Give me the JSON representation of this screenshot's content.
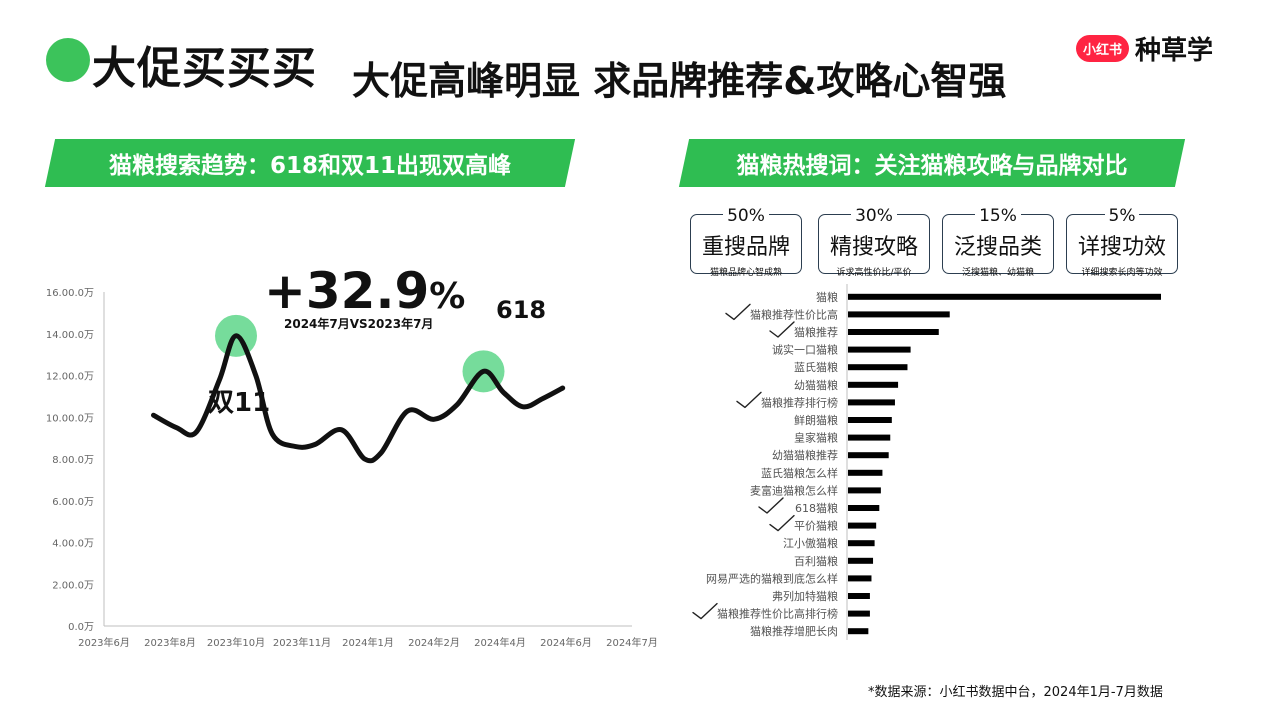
{
  "header": {
    "title_main": "大促买买买",
    "title_sub": "大促高峰明显 求品牌推荐&攻略心智强",
    "logo_badge": "小红书",
    "logo_text": "种草学"
  },
  "colors": {
    "accent": "#2fbd52",
    "dot": "#3cc35b",
    "highlight": "#5ed68a",
    "logo_red": "#ff2442"
  },
  "left_banner": "猫粮搜索趋势：618和双11出现双高峰",
  "right_banner": "猫粮热搜词：关注猫粮攻略与品牌对比",
  "annotations": {
    "growth_value": "+32.9",
    "growth_unit": "%",
    "growth_note": "2024年7月VS2023年7月",
    "peak_618": "618",
    "peak_1111": "双11"
  },
  "keyword_groups": [
    {
      "pct": "50%",
      "title": "重搜品牌",
      "desc": "猫粮品牌心智成熟"
    },
    {
      "pct": "30%",
      "title": "精搜攻略",
      "desc": "诉求高性价比/平价"
    },
    {
      "pct": "15%",
      "title": "泛搜品类",
      "desc": "泛搜猫粮、幼猫粮"
    },
    {
      "pct": "5%",
      "title": "详搜功效",
      "desc": "详细搜索长肉等功效"
    }
  ],
  "source_note": "*数据来源：小红书数据中台，2024年1月-7月数据",
  "chart_data": [
    {
      "type": "line",
      "title": "",
      "xlabel": "",
      "ylabel": "",
      "x": [
        "2023年6月",
        "2023年8月",
        "2023年10月",
        "2023年11月",
        "2024年1月",
        "2024年2月",
        "2024年4月",
        "2024年6月",
        "2024年7月"
      ],
      "ylim": [
        0,
        16
      ],
      "y_ticks": [
        "0.0万",
        "2.00.0万",
        "4.00.0万",
        "6.00.0万",
        "8.00.0万",
        "10.00.0万",
        "12.00.0万",
        "14.00.0万",
        "16.00.0万"
      ],
      "series": [
        {
          "points": [
            [
              0.75,
              10.1
            ],
            [
              1.1,
              9.5
            ],
            [
              1.4,
              9.3
            ],
            [
              1.75,
              11.8
            ],
            [
              2.0,
              13.9
            ],
            [
              2.3,
              12.0
            ],
            [
              2.55,
              9.2
            ],
            [
              2.9,
              8.6
            ],
            [
              3.2,
              8.7
            ],
            [
              3.6,
              9.4
            ],
            [
              3.95,
              8.0
            ],
            [
              4.2,
              8.3
            ],
            [
              4.6,
              10.3
            ],
            [
              5.0,
              9.9
            ],
            [
              5.35,
              10.6
            ],
            [
              5.75,
              12.2
            ],
            [
              6.05,
              11.2
            ],
            [
              6.35,
              10.5
            ],
            [
              6.65,
              10.9
            ],
            [
              6.95,
              11.4
            ]
          ]
        }
      ],
      "highlights": [
        {
          "x": 2.0,
          "y": 13.9
        },
        {
          "x": 5.75,
          "y": 12.2
        }
      ],
      "grid": false
    },
    {
      "type": "bar",
      "orientation": "horizontal",
      "title": "",
      "categories": [
        "猫粮",
        "猫粮推荐性价比高",
        "猫粮推荐",
        "诚实一口猫粮",
        "蓝氏猫粮",
        "幼猫猫粮",
        "猫粮推荐排行榜",
        "鲜朗猫粮",
        "皇家猫粮",
        "幼猫猫粮推荐",
        "蓝氏猫粮怎么样",
        "麦富迪猫粮怎么样",
        "618猫粮",
        "平价猫粮",
        "江小傲猫粮",
        "百利猫粮",
        "网易严选的猫粮到底怎么样",
        "弗列加特猫粮",
        "猫粮推荐性价比高排行榜",
        "猫粮推荐增肥长肉"
      ],
      "values": [
        100,
        32.5,
        29,
        20,
        19,
        16,
        15,
        14,
        13.5,
        13,
        11,
        10.5,
        10,
        9,
        8.5,
        8,
        7.5,
        7,
        7,
        6.5
      ],
      "checked": [
        false,
        true,
        true,
        false,
        false,
        false,
        true,
        false,
        false,
        false,
        false,
        false,
        true,
        true,
        false,
        false,
        false,
        false,
        true,
        false
      ],
      "grid": false
    }
  ]
}
